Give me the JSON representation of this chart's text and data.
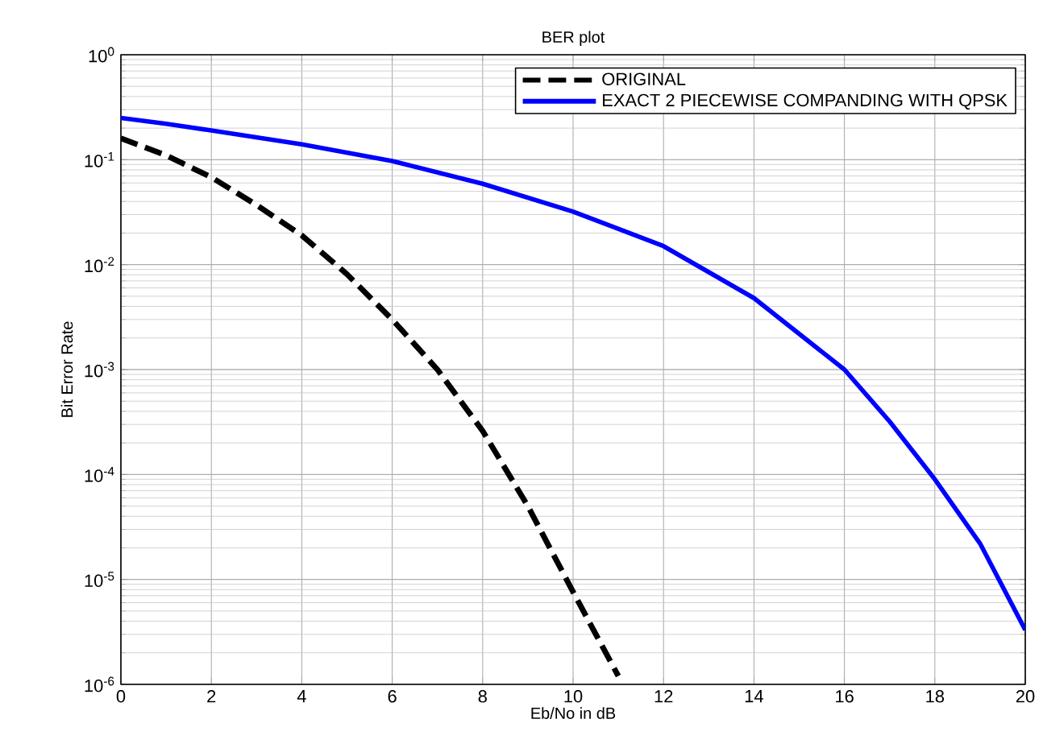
{
  "chart_data": {
    "type": "line",
    "title": "BER plot",
    "xlabel": "Eb/No in dB",
    "ylabel": "Bit Error Rate",
    "log": "y",
    "grid": true,
    "legend": "top right",
    "xlim": [
      0,
      20
    ],
    "xticks": [
      0,
      2,
      4,
      6,
      8,
      10,
      12,
      14,
      16,
      18,
      20
    ],
    "ylim": [
      1e-06,
      1
    ],
    "yticks": [
      {
        "value": 1e-06,
        "label": "10$^{-6}$"
      },
      {
        "value": 1e-05,
        "label": "10$^{-5}$"
      },
      {
        "value": 0.0001,
        "label": "10$^{-4}$"
      },
      {
        "value": 0.001,
        "label": "10$^{-3}$"
      },
      {
        "value": 0.01,
        "label": "10$^{-2}$"
      },
      {
        "value": 0.1,
        "label": "10$^{-1}$"
      },
      {
        "value": 1,
        "label": "10$^{0}$"
      }
    ],
    "series": [
      {
        "name": "ORIGINAL",
        "color": "#000000",
        "line_style": "dashed",
        "x": [
          0,
          1,
          2,
          3,
          4,
          5,
          6,
          7,
          8,
          9,
          10,
          11
        ],
        "values": [
          0.16,
          0.11,
          0.068,
          0.037,
          0.019,
          0.0081,
          0.003,
          0.001,
          0.00026,
          5e-05,
          7.6e-06,
          1.2e-06
        ]
      },
      {
        "name": "EXACT 2 PIECEWISE COMPANDING WITH QPSK",
        "color": "#0000ff",
        "line_style": "solid",
        "x": [
          0,
          1,
          2,
          4,
          6,
          8,
          10,
          12,
          14,
          16,
          17,
          18,
          19,
          20
        ],
        "values": [
          0.25,
          0.22,
          0.19,
          0.14,
          0.097,
          0.059,
          0.032,
          0.015,
          0.0048,
          0.001,
          0.00032,
          9e-05,
          2.2e-05,
          3.3e-06
        ]
      }
    ]
  }
}
